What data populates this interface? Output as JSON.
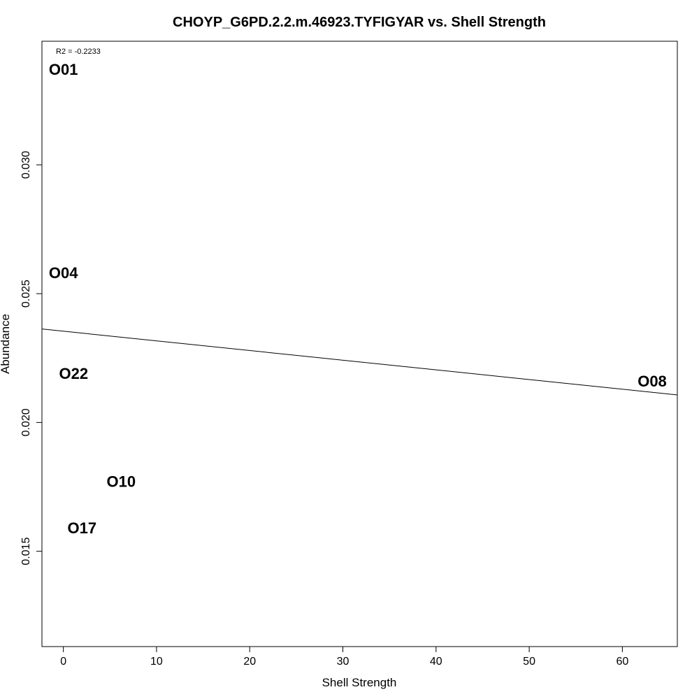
{
  "chart_data": {
    "type": "scatter",
    "title": "CHOYP_G6PD.2.2.m.46923.TYFIGYAR vs. Shell Strength",
    "xlabel": "Shell Strength",
    "ylabel": "Abundance",
    "xlim": [
      -2.3,
      65.9
    ],
    "ylim": [
      0.0113,
      0.0348
    ],
    "xticks": [
      0,
      10,
      20,
      30,
      40,
      50,
      60
    ],
    "xtick_labels": [
      "0",
      "10",
      "20",
      "30",
      "40",
      "50",
      "60"
    ],
    "yticks": [
      0.015,
      0.02,
      0.025,
      0.03
    ],
    "ytick_labels": [
      "0.015",
      "0.020",
      "0.025",
      "0.030"
    ],
    "points": [
      {
        "label": "O01",
        "x": 0.0,
        "y": 0.0337
      },
      {
        "label": "O04",
        "x": 0.0,
        "y": 0.0258
      },
      {
        "label": "O22",
        "x": 1.1,
        "y": 0.0219
      },
      {
        "label": "O08",
        "x": 63.2,
        "y": 0.0216
      },
      {
        "label": "O10",
        "x": 6.2,
        "y": 0.0177
      },
      {
        "label": "O17",
        "x": 2.0,
        "y": 0.0159
      }
    ],
    "regression_line": {
      "x": [
        -2.3,
        65.9
      ],
      "y": [
        0.02363,
        0.02107
      ]
    },
    "annotation": "R2 = -0.2233",
    "grid": false,
    "legend": "none"
  }
}
